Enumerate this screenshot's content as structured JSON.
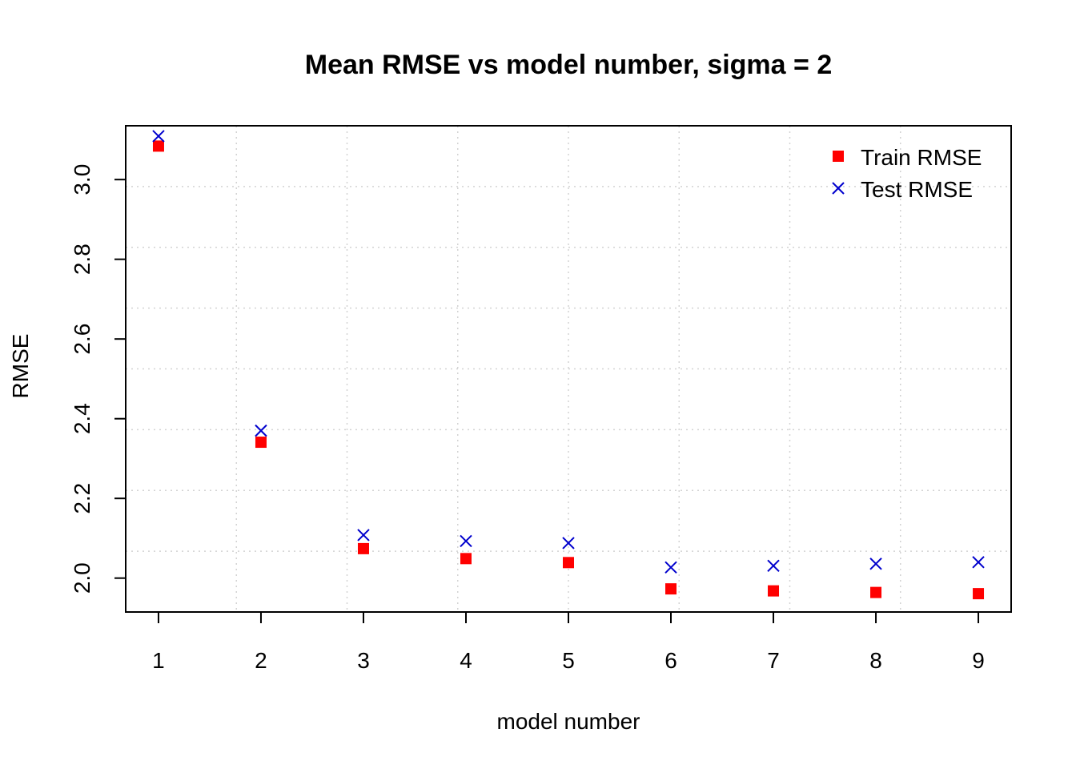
{
  "chart_data": {
    "type": "scatter",
    "title": "Mean RMSE vs model number, sigma = 2",
    "xlabel": "model number",
    "ylabel": "RMSE",
    "x": [
      1,
      2,
      3,
      4,
      5,
      6,
      7,
      8,
      9
    ],
    "xlim": [
      0.68,
      9.32
    ],
    "ylim": [
      1.915,
      3.135
    ],
    "x_ticks": [
      "1",
      "2",
      "3",
      "4",
      "5",
      "6",
      "7",
      "8",
      "9"
    ],
    "y_ticks": [
      "2.0",
      "2.2",
      "2.4",
      "2.6",
      "2.8",
      "3.0"
    ],
    "grid": true,
    "legend_position": "top-right",
    "series": [
      {
        "name": "Train RMSE",
        "marker": "filled-square",
        "color": "#ff0000",
        "values": [
          3.084,
          2.341,
          2.074,
          2.049,
          2.039,
          1.973,
          1.968,
          1.964,
          1.961
        ]
      },
      {
        "name": "Test RMSE",
        "marker": "x",
        "color": "#0000cd",
        "values": [
          3.109,
          2.37,
          2.108,
          2.093,
          2.088,
          2.027,
          2.031,
          2.036,
          2.04
        ]
      }
    ]
  }
}
